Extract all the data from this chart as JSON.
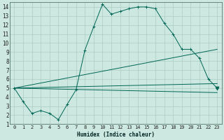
{
  "xlabel": "Humidex (Indice chaleur)",
  "bg_color": "#cce8e0",
  "grid_color": "#aaccc4",
  "line_color": "#006655",
  "xlim": [
    -0.5,
    23.5
  ],
  "ylim": [
    1,
    14.5
  ],
  "xticks": [
    0,
    1,
    2,
    3,
    4,
    5,
    6,
    7,
    8,
    9,
    10,
    11,
    12,
    13,
    14,
    15,
    16,
    17,
    18,
    19,
    20,
    21,
    22,
    23
  ],
  "yticks": [
    1,
    2,
    3,
    4,
    5,
    6,
    7,
    8,
    9,
    10,
    11,
    12,
    13,
    14
  ],
  "main_x": [
    0,
    1,
    2,
    3,
    4,
    5,
    6,
    7,
    8,
    9,
    10,
    11,
    12,
    13,
    14,
    15,
    16,
    17,
    18,
    19,
    20,
    21,
    22,
    23
  ],
  "main_y": [
    5.0,
    3.5,
    2.2,
    2.5,
    2.2,
    1.5,
    3.2,
    4.8,
    9.2,
    11.8,
    14.3,
    13.2,
    13.5,
    13.8,
    14.0,
    14.0,
    13.8,
    12.2,
    11.0,
    9.3,
    9.3,
    8.3,
    6.0,
    5.0
  ],
  "trend_lines": [
    {
      "x": [
        0,
        23
      ],
      "y": [
        5.0,
        9.3
      ]
    },
    {
      "x": [
        0,
        23
      ],
      "y": [
        5.0,
        5.5
      ]
    },
    {
      "x": [
        0,
        23
      ],
      "y": [
        5.0,
        4.5
      ]
    }
  ],
  "triangle_x": 23,
  "triangle_y": 5.0
}
